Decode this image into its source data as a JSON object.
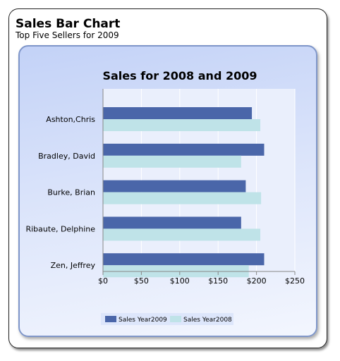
{
  "report": {
    "title": "Sales Bar Chart",
    "subtitle": "Top Five Sellers for 2009"
  },
  "colors": {
    "year2009": "#4a66a9",
    "year2008": "#bfe3e8",
    "plot_bg": "#eaeffc",
    "grid": "#ffffff"
  },
  "chart_data": {
    "type": "bar",
    "orientation": "horizontal",
    "title": "Sales for 2008 and 2009",
    "categories": [
      "Ashton,Chris",
      "Bradley, David",
      "Burke, Brian",
      "Ribaute, Delphine",
      "Zen, Jeffrey"
    ],
    "series": [
      {
        "name": "Sales Year2009",
        "values": [
          194,
          210,
          186,
          180,
          210
        ]
      },
      {
        "name": "Sales Year2008",
        "values": [
          205,
          180,
          206,
          205,
          190
        ]
      }
    ],
    "xlim": [
      0,
      250
    ],
    "xticks": [
      "$0",
      "$50",
      "$100",
      "$150",
      "$200",
      "$250"
    ],
    "xlabel": "",
    "ylabel": "",
    "grid": true,
    "legend_position": "bottom-center"
  }
}
